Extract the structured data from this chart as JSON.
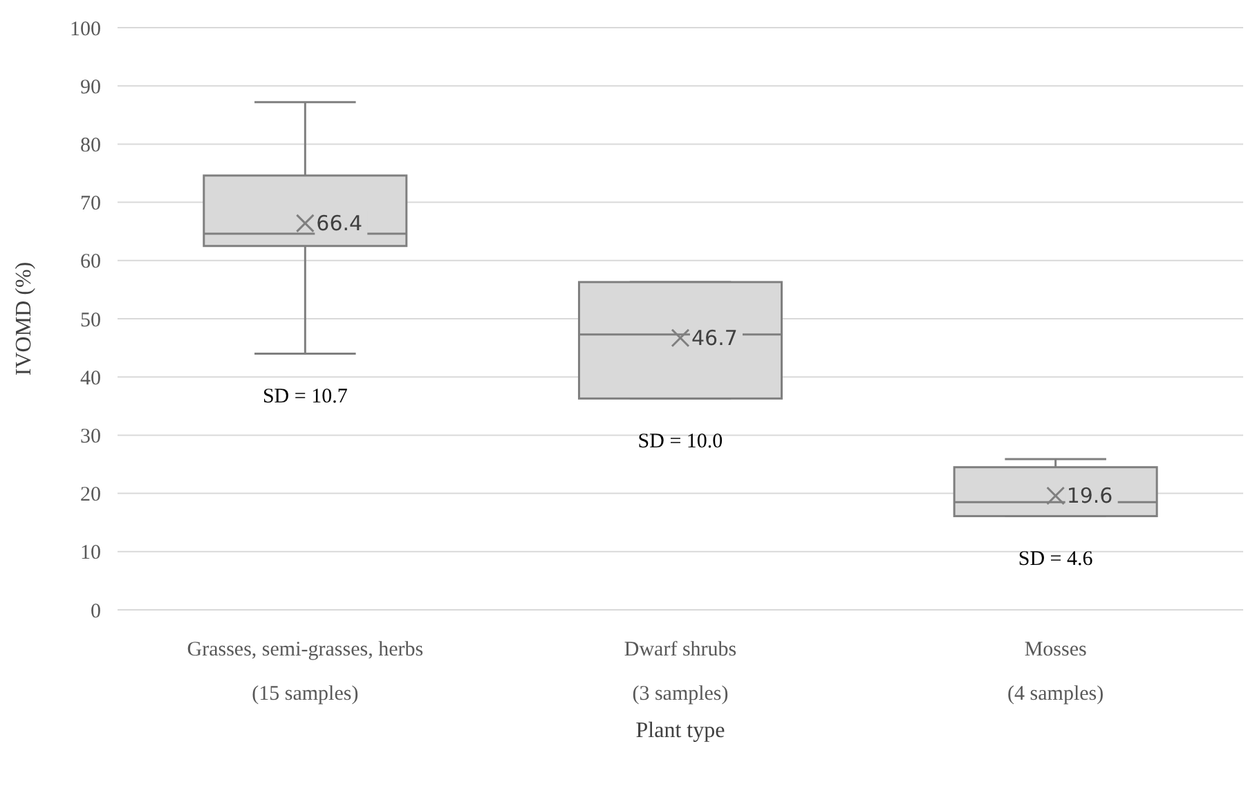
{
  "chart_data": {
    "type": "box",
    "xlabel": "Plant type",
    "ylabel": "IVOMD (%)",
    "categories": [
      "Grasses, semi-grasses, herbs\n(15 samples)",
      "Dwarf shrubs\n(3 samples)",
      "Mosses\n(4 samples)"
    ],
    "boxes": [
      {
        "low": 44,
        "q1": 62.5,
        "median": 64.6,
        "q3": 74.6,
        "high": 87.2,
        "mean": 66.4
      },
      {
        "low": 36.3,
        "q1": 36.3,
        "median": 47.3,
        "q3": 56.3,
        "high": 56.3,
        "mean": 46.7
      },
      {
        "low": 16.1,
        "q1": 16.1,
        "median": 18.5,
        "q3": 24.5,
        "high": 25.9,
        "mean": 19.6
      }
    ],
    "color": "#d9d9d9",
    "marker": "cross",
    "ylim": [
      0,
      100
    ],
    "yticks": [
      0,
      10,
      20,
      30,
      40,
      50,
      60,
      70,
      80,
      90,
      100
    ],
    "grid": "y",
    "annotations": [
      "66.4",
      "46.7",
      "19.6",
      "SD = 10.7",
      "SD = 10.0",
      "SD = 4.6"
    ]
  }
}
